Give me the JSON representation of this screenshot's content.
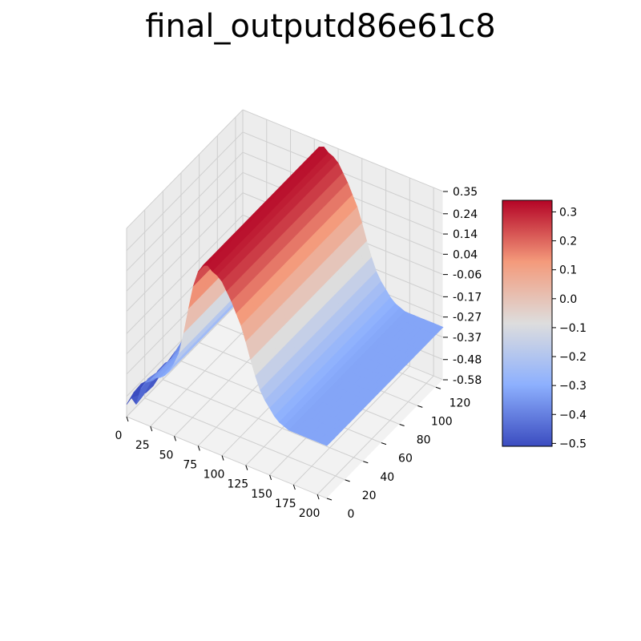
{
  "chart_data": {
    "type": "surface",
    "title": "final_outputd86e61c8",
    "colormap": "coolwarm",
    "x_ticks": [
      "0",
      "25",
      "50",
      "75",
      "100",
      "125",
      "150",
      "175",
      "200"
    ],
    "y_ticks": [
      "0",
      "20",
      "40",
      "60",
      "80",
      "100",
      "120"
    ],
    "z_ticks": [
      "0.35",
      "0.24",
      "0.14",
      "0.04",
      "-0.06",
      "-0.17",
      "-0.27",
      "-0.37",
      "-0.48",
      "-0.58"
    ],
    "colorbar_ticks": [
      "0.3",
      "0.2",
      "0.1",
      "0.0",
      "−0.1",
      "−0.2",
      "−0.3",
      "−0.4",
      "−0.5"
    ],
    "xlim": [
      0,
      210
    ],
    "ylim": [
      0,
      128
    ],
    "zlim": [
      -0.58,
      0.35
    ],
    "colorbar_range": [
      -0.51,
      0.34
    ],
    "surface_profile": {
      "x": [
        0,
        5,
        10,
        15,
        20,
        25,
        30,
        35,
        40,
        45,
        50,
        55,
        60,
        65,
        70,
        75,
        80,
        85,
        90,
        95,
        100,
        105,
        110,
        115,
        120,
        125,
        130,
        135,
        140,
        145,
        150,
        155,
        160,
        165,
        170,
        175,
        180,
        185,
        190,
        195,
        200,
        205,
        210
      ],
      "z": [
        -0.52,
        -0.5,
        -0.47,
        -0.43,
        -0.38,
        -0.35,
        -0.33,
        -0.32,
        -0.3,
        -0.27,
        -0.22,
        -0.16,
        -0.05,
        0.08,
        0.2,
        0.28,
        0.32,
        0.33,
        0.31,
        0.3,
        0.28,
        0.24,
        0.2,
        0.15,
        0.1,
        0.03,
        -0.05,
        -0.12,
        -0.18,
        -0.22,
        -0.25,
        -0.28,
        -0.3,
        -0.31,
        -0.32,
        -0.32,
        -0.32,
        -0.32,
        -0.32,
        -0.32,
        -0.32,
        -0.32,
        -0.32
      ]
    }
  }
}
